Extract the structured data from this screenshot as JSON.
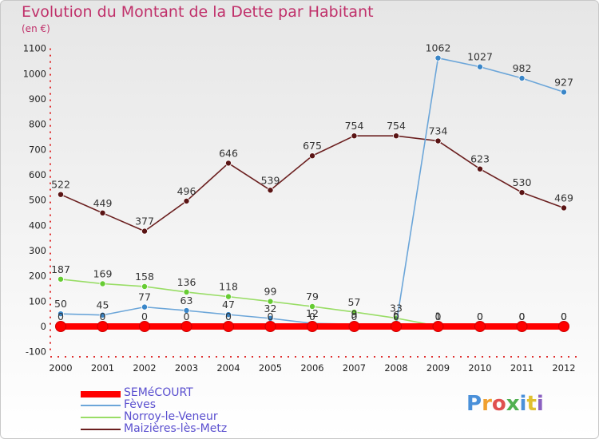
{
  "chart_data": {
    "type": "line",
    "title": "Evolution du Montant de la Dette par Habitant",
    "ylabel": "(en €)",
    "xlabel": "",
    "categories": [
      "2000",
      "2001",
      "2002",
      "2003",
      "2004",
      "2005",
      "2006",
      "2007",
      "2008",
      "2009",
      "2010",
      "2011",
      "2012"
    ],
    "ylim": [
      -100,
      1100
    ],
    "yticks": [
      -100,
      0,
      100,
      200,
      300,
      400,
      500,
      600,
      700,
      800,
      900,
      1000,
      1100
    ],
    "grid": false,
    "legend_position": "bottom-left",
    "series": [
      {
        "name": "SEMéCOURT",
        "color": "#ff0000",
        "marker_color": "#ff0000",
        "values": [
          0,
          0,
          0,
          0,
          0,
          0,
          0,
          0,
          0,
          0,
          0,
          0,
          0
        ],
        "labels": [
          "0",
          "0",
          "0",
          "0",
          "0",
          "0",
          "0",
          "0",
          "0",
          "0",
          "0",
          "0",
          "0"
        ]
      },
      {
        "name": "Fèves",
        "color": "#6ca6d9",
        "marker_color": "#3a86c8",
        "values": [
          50,
          45,
          77,
          63,
          47,
          32,
          12,
          9,
          6,
          1062,
          1027,
          982,
          927
        ],
        "labels": [
          "50",
          "45",
          "77",
          "63",
          "47",
          "32",
          "12",
          "9",
          "6",
          "1062",
          "1027",
          "982",
          "927"
        ]
      },
      {
        "name": "Norroy-le-Veneur",
        "color": "#99dd66",
        "marker_color": "#66cc33",
        "values": [
          187,
          169,
          158,
          136,
          118,
          99,
          79,
          57,
          33,
          1,
          0,
          0,
          0
        ],
        "labels": [
          "187",
          "169",
          "158",
          "136",
          "118",
          "99",
          "79",
          "57",
          "33",
          "1",
          "0",
          "0",
          "0"
        ]
      },
      {
        "name": "Maizières-lès-Metz",
        "color": "#6b1f1f",
        "marker_color": "#5a1414",
        "values": [
          522,
          449,
          377,
          496,
          646,
          539,
          675,
          754,
          754,
          734,
          623,
          530,
          469
        ],
        "labels": [
          "522",
          "449",
          "377",
          "496",
          "646",
          "539",
          "675",
          "754",
          "754",
          "734",
          "623",
          "530",
          "469"
        ]
      }
    ]
  },
  "branding": {
    "logo_text": "Proxiti",
    "logo_colors": [
      "#4a90d9",
      "#f0a030",
      "#e05050",
      "#50b050",
      "#4a90d9",
      "#e0c030",
      "#8a60c0"
    ]
  }
}
